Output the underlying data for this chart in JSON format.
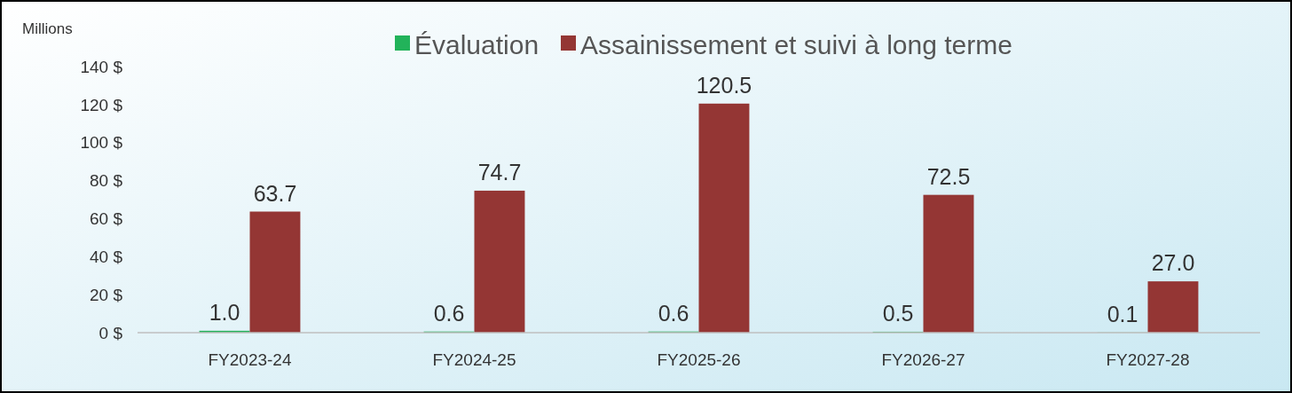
{
  "chart_data": {
    "type": "bar",
    "ylabel": "Millions",
    "categories": [
      "FY2023-24",
      "FY2024-25",
      "FY2025-26",
      "FY2026-27",
      "FY2027-28"
    ],
    "series": [
      {
        "name": "Évaluation",
        "color": "#22b35a",
        "values": [
          1.0,
          0.6,
          0.6,
          0.5,
          0.1
        ],
        "value_labels": [
          "1.0",
          "0.6",
          "0.6",
          "0.5",
          "0.1"
        ]
      },
      {
        "name": "Assainissement et suivi à long terme",
        "color": "#943634",
        "values": [
          63.7,
          74.7,
          120.5,
          72.5,
          27.0
        ],
        "value_labels": [
          "63.7",
          "74.7",
          "120.5",
          "72.5",
          "27.0"
        ]
      }
    ],
    "ylim": [
      0,
      140
    ],
    "yticks": [
      {
        "value": 0,
        "label": "0 $"
      },
      {
        "value": 20,
        "label": "20 $"
      },
      {
        "value": 40,
        "label": "40 $"
      },
      {
        "value": 60,
        "label": "60 $"
      },
      {
        "value": 80,
        "label": "80 $"
      },
      {
        "value": 100,
        "label": "100 $"
      },
      {
        "value": 120,
        "label": "120 $"
      },
      {
        "value": 140,
        "label": "140 $"
      }
    ],
    "grid": false,
    "legend": "top"
  }
}
